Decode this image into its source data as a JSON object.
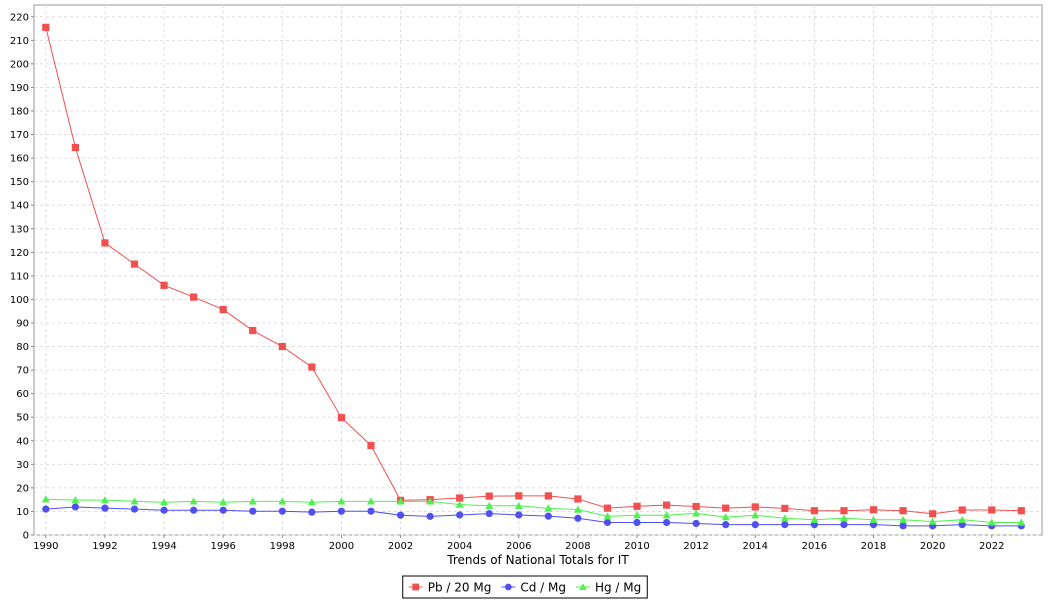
{
  "chart_data": {
    "type": "line",
    "title": "",
    "xlabel": "Trends of National Totals for IT",
    "ylabel": "",
    "xlim": [
      1989.6,
      2023.7
    ],
    "ylim": [
      0,
      225
    ],
    "x_ticks": [
      1990,
      1992,
      1994,
      1996,
      1998,
      2000,
      2002,
      2004,
      2006,
      2008,
      2010,
      2012,
      2014,
      2016,
      2018,
      2020,
      2022
    ],
    "y_ticks": [
      0,
      10,
      20,
      30,
      40,
      50,
      60,
      70,
      80,
      90,
      100,
      110,
      120,
      130,
      140,
      150,
      160,
      170,
      180,
      190,
      200,
      210,
      220
    ],
    "grid": true,
    "legend_position": "bottom",
    "x": [
      1990,
      1991,
      1992,
      1993,
      1994,
      1995,
      1996,
      1997,
      1998,
      1999,
      2000,
      2001,
      2002,
      2003,
      2004,
      2005,
      2006,
      2007,
      2008,
      2009,
      2010,
      2011,
      2012,
      2013,
      2014,
      2015,
      2016,
      2017,
      2018,
      2019,
      2020,
      2021,
      2022,
      2023
    ],
    "series": [
      {
        "name": "Pb / 20 Mg",
        "color": "#f05050",
        "marker": "square",
        "values": [
          215.5,
          164.5,
          124,
          115,
          106,
          101,
          95.7,
          86.8,
          80,
          71.3,
          49.8,
          38,
          14.7,
          15,
          15.7,
          16.5,
          16.6,
          16.6,
          15.3,
          11.4,
          12.2,
          12.7,
          12.1,
          11.4,
          11.9,
          11.3,
          10.3,
          10.3,
          10.7,
          10.3,
          9,
          10.6,
          10.6,
          10.3
        ]
      },
      {
        "name": "Cd / Mg",
        "color": "#5050f0",
        "marker": "circle",
        "values": [
          11,
          11.9,
          11.4,
          11,
          10.5,
          10.5,
          10.5,
          10.1,
          10.1,
          9.7,
          10.1,
          10.1,
          8.4,
          7.9,
          8.5,
          9.1,
          8.5,
          8,
          7.1,
          5.3,
          5.3,
          5.3,
          4.9,
          4.4,
          4.4,
          4.4,
          4.4,
          4.4,
          4.4,
          3.9,
          3.9,
          4.4,
          3.9,
          3.9
        ]
      },
      {
        "name": "Hg / Mg",
        "color": "#50f050",
        "marker": "triangle",
        "values": [
          15.2,
          14.8,
          14.8,
          14.3,
          13.9,
          14.3,
          13.9,
          14.3,
          14.3,
          13.9,
          14.3,
          14.3,
          14.3,
          14.3,
          12.9,
          12.4,
          12.4,
          11.3,
          10.8,
          7.9,
          8.4,
          8.4,
          9.2,
          7.6,
          8.4,
          7.1,
          6.5,
          7.1,
          6.5,
          6.5,
          5.7,
          6.5,
          5.3,
          5.3
        ]
      }
    ]
  }
}
